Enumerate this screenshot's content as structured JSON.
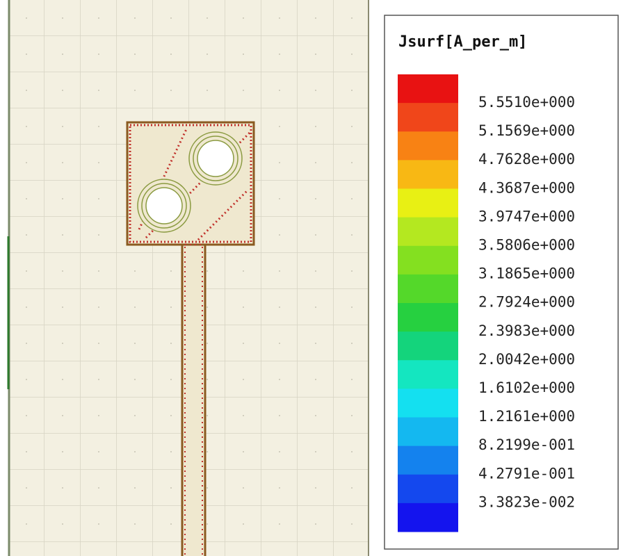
{
  "legend": {
    "title": "Jsurf[A_per_m]",
    "colors": [
      "#e81212",
      "#f0461a",
      "#f88214",
      "#f8b814",
      "#e8f014",
      "#b4e820",
      "#84e020",
      "#54d82a",
      "#26d040",
      "#14d47c",
      "#14e6c0",
      "#14e0f0",
      "#14b8f0",
      "#1482ee",
      "#1448ee",
      "#1414ee"
    ],
    "labels": [
      "5.5510e+000",
      "5.1569e+000",
      "4.7628e+000",
      "4.3687e+000",
      "3.9747e+000",
      "3.5806e+000",
      "3.1865e+000",
      "2.7924e+000",
      "2.3983e+000",
      "2.0042e+000",
      "1.6102e+000",
      "1.2161e+000",
      "8.2199e-001",
      "4.2791e-001",
      "3.3823e-002"
    ]
  }
}
